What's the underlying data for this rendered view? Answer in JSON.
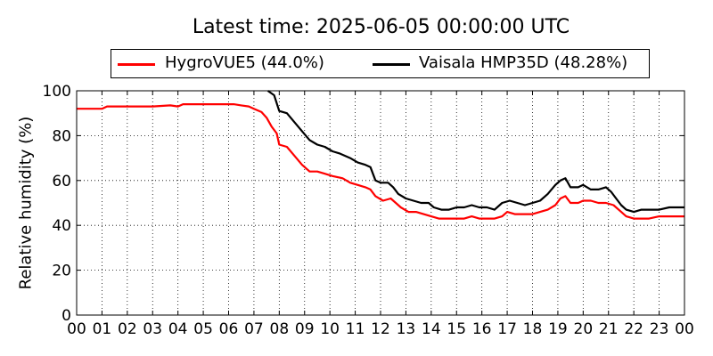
{
  "chart_data": {
    "type": "line",
    "title": "Latest time: 2025-06-05 00:00:00 UTC",
    "ylabel": "Relative humidity (%)",
    "xlabel": "",
    "xlim": [
      0,
      24
    ],
    "ylim": [
      0,
      100
    ],
    "yticks": [
      0,
      20,
      40,
      60,
      80,
      100
    ],
    "xtick_labels": [
      "00",
      "01",
      "02",
      "03",
      "04",
      "05",
      "06",
      "07",
      "08",
      "09",
      "10",
      "11",
      "12",
      "13",
      "14",
      "15",
      "16",
      "17",
      "18",
      "19",
      "20",
      "21",
      "22",
      "23",
      "00"
    ],
    "grid": true,
    "legend_position": "top",
    "series": [
      {
        "name": "HygroVUE5 (44.0%)",
        "color": "#ff0000",
        "points": [
          [
            0,
            92
          ],
          [
            0.5,
            92
          ],
          [
            1,
            92
          ],
          [
            1.2,
            93
          ],
          [
            1.6,
            93
          ],
          [
            2.2,
            93
          ],
          [
            3,
            93
          ],
          [
            3.7,
            93.5
          ],
          [
            4,
            93
          ],
          [
            4.2,
            94
          ],
          [
            5,
            94
          ],
          [
            5.6,
            94
          ],
          [
            6.2,
            94
          ],
          [
            6.5,
            93.5
          ],
          [
            6.8,
            93
          ],
          [
            7.0,
            92
          ],
          [
            7.3,
            90.5
          ],
          [
            7.5,
            88
          ],
          [
            7.7,
            84
          ],
          [
            7.9,
            81
          ],
          [
            8.0,
            76
          ],
          [
            8.3,
            75
          ],
          [
            8.6,
            71
          ],
          [
            8.9,
            67
          ],
          [
            9.2,
            64
          ],
          [
            9.5,
            64
          ],
          [
            9.8,
            63
          ],
          [
            10.1,
            62
          ],
          [
            10.5,
            61
          ],
          [
            10.8,
            59
          ],
          [
            11.1,
            58
          ],
          [
            11.4,
            57
          ],
          [
            11.6,
            56
          ],
          [
            11.8,
            53
          ],
          [
            12.1,
            51
          ],
          [
            12.4,
            52
          ],
          [
            12.6,
            50
          ],
          [
            12.8,
            48
          ],
          [
            13.1,
            46
          ],
          [
            13.4,
            46
          ],
          [
            13.7,
            45
          ],
          [
            14.0,
            44
          ],
          [
            14.3,
            43
          ],
          [
            14.6,
            43
          ],
          [
            15.0,
            43
          ],
          [
            15.3,
            43
          ],
          [
            15.6,
            44
          ],
          [
            15.9,
            43
          ],
          [
            16.2,
            43
          ],
          [
            16.5,
            43
          ],
          [
            16.8,
            44
          ],
          [
            17.0,
            46
          ],
          [
            17.3,
            45
          ],
          [
            17.6,
            45
          ],
          [
            18.0,
            45
          ],
          [
            18.3,
            46
          ],
          [
            18.6,
            47
          ],
          [
            18.9,
            49
          ],
          [
            19.1,
            52
          ],
          [
            19.3,
            53
          ],
          [
            19.5,
            50
          ],
          [
            19.8,
            50
          ],
          [
            20.0,
            51
          ],
          [
            20.3,
            51
          ],
          [
            20.6,
            50
          ],
          [
            20.9,
            50
          ],
          [
            21.2,
            49
          ],
          [
            21.5,
            46
          ],
          [
            21.7,
            44
          ],
          [
            22.0,
            43
          ],
          [
            22.3,
            43
          ],
          [
            22.6,
            43
          ],
          [
            23.0,
            44
          ],
          [
            23.4,
            44
          ],
          [
            23.7,
            44
          ],
          [
            24.0,
            44
          ]
        ]
      },
      {
        "name": "Vaisala HMP35D (48.28%)",
        "color": "#000000",
        "points": [
          [
            7.55,
            100
          ],
          [
            7.8,
            98
          ],
          [
            8.0,
            91
          ],
          [
            8.3,
            90
          ],
          [
            8.6,
            86
          ],
          [
            8.9,
            82
          ],
          [
            9.2,
            78
          ],
          [
            9.5,
            76
          ],
          [
            9.8,
            75
          ],
          [
            10.1,
            73
          ],
          [
            10.4,
            72
          ],
          [
            10.8,
            70
          ],
          [
            11.1,
            68
          ],
          [
            11.4,
            67
          ],
          [
            11.6,
            66
          ],
          [
            11.8,
            60
          ],
          [
            12.0,
            59
          ],
          [
            12.3,
            59
          ],
          [
            12.5,
            57
          ],
          [
            12.7,
            54
          ],
          [
            13.0,
            52
          ],
          [
            13.3,
            51
          ],
          [
            13.6,
            50
          ],
          [
            13.9,
            50
          ],
          [
            14.1,
            48
          ],
          [
            14.4,
            47
          ],
          [
            14.7,
            47
          ],
          [
            15.0,
            48
          ],
          [
            15.3,
            48
          ],
          [
            15.6,
            49
          ],
          [
            15.9,
            48
          ],
          [
            16.2,
            48
          ],
          [
            16.5,
            47
          ],
          [
            16.8,
            50
          ],
          [
            17.1,
            51
          ],
          [
            17.4,
            50
          ],
          [
            17.7,
            49
          ],
          [
            18.0,
            50
          ],
          [
            18.3,
            51
          ],
          [
            18.6,
            54
          ],
          [
            18.9,
            58
          ],
          [
            19.1,
            60
          ],
          [
            19.3,
            61
          ],
          [
            19.5,
            57
          ],
          [
            19.8,
            57
          ],
          [
            20.0,
            58
          ],
          [
            20.3,
            56
          ],
          [
            20.6,
            56
          ],
          [
            20.9,
            57
          ],
          [
            21.1,
            55
          ],
          [
            21.3,
            52
          ],
          [
            21.5,
            49
          ],
          [
            21.7,
            47
          ],
          [
            22.0,
            46
          ],
          [
            22.3,
            47
          ],
          [
            22.6,
            47
          ],
          [
            23.0,
            47
          ],
          [
            23.4,
            48
          ],
          [
            23.7,
            48
          ],
          [
            24.0,
            48
          ]
        ]
      }
    ]
  }
}
